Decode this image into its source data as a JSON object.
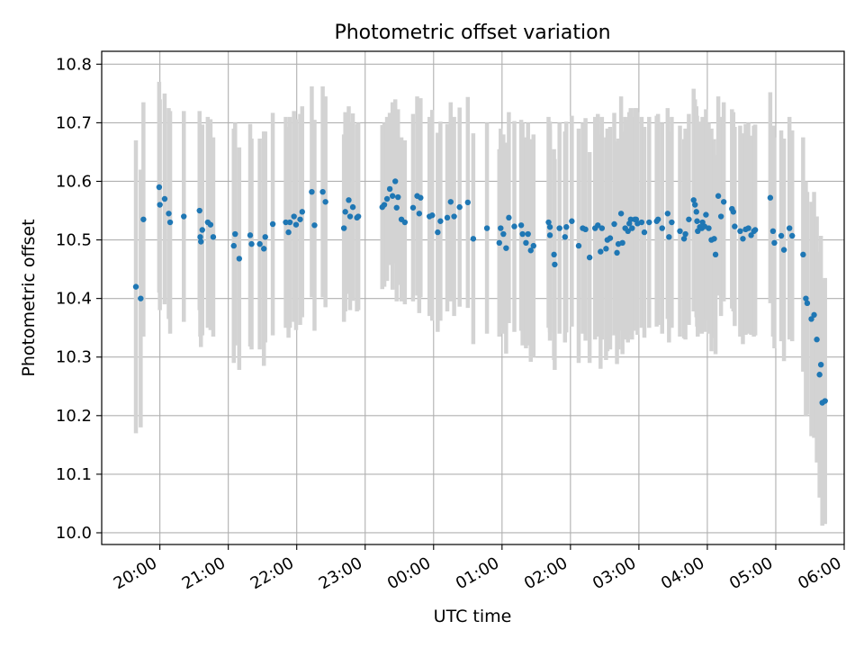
{
  "chart_data": {
    "type": "scatter",
    "title": "Photometric offset variation",
    "xlabel": "UTC time",
    "ylabel": "Photometric offset",
    "x_unit": "hours since 20:00 UTC",
    "xlim": [
      -0.85,
      10.0
    ],
    "ylim": [
      9.98,
      10.822
    ],
    "grid": true,
    "colors": {
      "point": "#1f77b4",
      "errorbar": "#d3d3d3",
      "grid": "#b0b0b0"
    },
    "x_ticks": [
      0,
      1,
      2,
      3,
      4,
      5,
      6,
      7,
      8,
      9,
      10
    ],
    "x_tick_labels": [
      "20:00",
      "21:00",
      "22:00",
      "23:00",
      "00:00",
      "01:00",
      "02:00",
      "03:00",
      "04:00",
      "05:00",
      "06:00"
    ],
    "y_ticks": [
      10.0,
      10.1,
      10.2,
      10.3,
      10.4,
      10.5,
      10.6,
      10.7,
      10.8
    ],
    "y_tick_labels": [
      "10.0",
      "10.1",
      "10.2",
      "10.3",
      "10.4",
      "10.5",
      "10.6",
      "10.7",
      "10.8"
    ],
    "series": [
      {
        "name": "Photometric offset",
        "errorbar_halfwidth": 0.18,
        "points": [
          [
            -0.35,
            10.42,
            0.25
          ],
          [
            -0.28,
            10.4,
            0.22
          ],
          [
            -0.24,
            10.535,
            0.2
          ],
          [
            -0.01,
            10.59,
            0.18
          ],
          [
            0.0,
            10.56,
            0.18
          ],
          [
            0.07,
            10.57,
            0.18
          ],
          [
            0.13,
            10.545,
            0.18
          ],
          [
            0.15,
            10.53,
            0.19
          ],
          [
            0.35,
            10.54,
            0.18
          ],
          [
            0.58,
            10.55,
            0.17
          ],
          [
            0.59,
            10.505,
            0.17
          ],
          [
            0.6,
            10.497,
            0.18
          ],
          [
            0.62,
            10.517,
            0.18
          ],
          [
            0.7,
            10.53,
            0.18
          ],
          [
            0.74,
            10.526,
            0.18
          ],
          [
            0.78,
            10.505,
            0.17
          ],
          [
            1.08,
            10.49,
            0.2
          ],
          [
            1.1,
            10.51,
            0.19
          ],
          [
            1.16,
            10.468,
            0.19
          ],
          [
            1.32,
            10.508,
            0.19
          ],
          [
            1.34,
            10.493,
            0.18
          ],
          [
            1.46,
            10.493,
            0.18
          ],
          [
            1.52,
            10.485,
            0.2
          ],
          [
            1.54,
            10.505,
            0.18
          ],
          [
            1.65,
            10.527,
            0.19
          ],
          [
            1.84,
            10.53,
            0.18
          ],
          [
            1.88,
            10.513,
            0.18
          ],
          [
            1.9,
            10.53,
            0.18
          ],
          [
            1.96,
            10.54,
            0.18
          ],
          [
            1.99,
            10.526,
            0.18
          ],
          [
            2.05,
            10.535,
            0.18
          ],
          [
            2.08,
            10.548,
            0.18
          ],
          [
            2.22,
            10.582,
            0.18
          ],
          [
            2.26,
            10.525,
            0.18
          ],
          [
            2.38,
            10.582,
            0.18
          ],
          [
            2.42,
            10.565,
            0.18
          ],
          [
            2.69,
            10.52,
            0.16
          ],
          [
            2.71,
            10.548,
            0.17
          ],
          [
            2.76,
            10.568,
            0.16
          ],
          [
            2.78,
            10.54,
            0.16
          ],
          [
            2.82,
            10.556,
            0.16
          ],
          [
            2.88,
            10.538,
            0.16
          ],
          [
            2.9,
            10.54,
            0.16
          ],
          [
            3.25,
            10.556,
            0.14
          ],
          [
            3.28,
            10.56,
            0.14
          ],
          [
            3.32,
            10.57,
            0.14
          ],
          [
            3.36,
            10.587,
            0.13
          ],
          [
            3.4,
            10.575,
            0.16
          ],
          [
            3.44,
            10.6,
            0.14
          ],
          [
            3.46,
            10.555,
            0.16
          ],
          [
            3.48,
            10.573,
            0.15
          ],
          [
            3.53,
            10.535,
            0.14
          ],
          [
            3.58,
            10.53,
            0.14
          ],
          [
            3.7,
            10.555,
            0.16
          ],
          [
            3.76,
            10.575,
            0.17
          ],
          [
            3.79,
            10.545,
            0.17
          ],
          [
            3.81,
            10.572,
            0.17
          ],
          [
            3.94,
            10.54,
            0.17
          ],
          [
            3.98,
            10.542,
            0.18
          ],
          [
            4.06,
            10.513,
            0.17
          ],
          [
            4.1,
            10.532,
            0.17
          ],
          [
            4.2,
            10.538,
            0.16
          ],
          [
            4.25,
            10.565,
            0.17
          ],
          [
            4.3,
            10.54,
            0.17
          ],
          [
            4.38,
            10.556,
            0.17
          ],
          [
            4.5,
            10.564,
            0.18
          ],
          [
            4.58,
            10.502,
            0.18
          ],
          [
            4.78,
            10.52,
            0.18
          ],
          [
            4.96,
            10.495,
            0.16
          ],
          [
            4.98,
            10.52,
            0.17
          ],
          [
            5.02,
            10.51,
            0.17
          ],
          [
            5.06,
            10.486,
            0.18
          ],
          [
            5.1,
            10.538,
            0.18
          ],
          [
            5.18,
            10.523,
            0.18
          ],
          [
            5.28,
            10.525,
            0.18
          ],
          [
            5.3,
            10.51,
            0.19
          ],
          [
            5.35,
            10.495,
            0.18
          ],
          [
            5.38,
            10.51,
            0.19
          ],
          [
            5.42,
            10.482,
            0.19
          ],
          [
            5.46,
            10.49,
            0.19
          ],
          [
            5.68,
            10.53,
            0.18
          ],
          [
            5.7,
            10.522,
            0.18
          ],
          [
            5.7,
            10.508,
            0.18
          ],
          [
            5.76,
            10.475,
            0.18
          ],
          [
            5.77,
            10.458,
            0.18
          ],
          [
            5.84,
            10.52,
            0.18
          ],
          [
            5.92,
            10.505,
            0.18
          ],
          [
            5.94,
            10.522,
            0.18
          ],
          [
            6.02,
            10.532,
            0.18
          ],
          [
            6.12,
            10.49,
            0.2
          ],
          [
            6.18,
            10.52,
            0.18
          ],
          [
            6.22,
            10.518,
            0.19
          ],
          [
            6.28,
            10.47,
            0.18
          ],
          [
            6.36,
            10.52,
            0.19
          ],
          [
            6.4,
            10.525,
            0.19
          ],
          [
            6.44,
            10.48,
            0.2
          ],
          [
            6.46,
            10.52,
            0.19
          ],
          [
            6.52,
            10.485,
            0.19
          ],
          [
            6.54,
            10.5,
            0.19
          ],
          [
            6.58,
            10.503,
            0.19
          ],
          [
            6.64,
            10.527,
            0.19
          ],
          [
            6.68,
            10.478,
            0.19
          ],
          [
            6.7,
            10.493,
            0.18
          ],
          [
            6.74,
            10.545,
            0.2
          ],
          [
            6.76,
            10.495,
            0.19
          ],
          [
            6.8,
            10.52,
            0.19
          ],
          [
            6.84,
            10.515,
            0.19
          ],
          [
            6.86,
            10.528,
            0.19
          ],
          [
            6.88,
            10.535,
            0.19
          ],
          [
            6.9,
            10.52,
            0.19
          ],
          [
            6.94,
            10.535,
            0.19
          ],
          [
            6.96,
            10.535,
            0.19
          ],
          [
            6.98,
            10.528,
            0.19
          ],
          [
            7.04,
            10.53,
            0.18
          ],
          [
            7.08,
            10.513,
            0.18
          ],
          [
            7.15,
            10.53,
            0.18
          ],
          [
            7.26,
            10.532,
            0.18
          ],
          [
            7.28,
            10.535,
            0.18
          ],
          [
            7.34,
            10.52,
            0.18
          ],
          [
            7.42,
            10.545,
            0.18
          ],
          [
            7.44,
            10.505,
            0.18
          ],
          [
            7.48,
            10.53,
            0.18
          ],
          [
            7.6,
            10.515,
            0.18
          ],
          [
            7.66,
            10.502,
            0.17
          ],
          [
            7.68,
            10.51,
            0.18
          ],
          [
            7.73,
            10.535,
            0.18
          ],
          [
            7.8,
            10.568,
            0.19
          ],
          [
            7.82,
            10.56,
            0.18
          ],
          [
            7.84,
            10.548,
            0.18
          ],
          [
            7.85,
            10.532,
            0.18
          ],
          [
            7.86,
            10.515,
            0.18
          ],
          [
            7.89,
            10.522,
            0.18
          ],
          [
            7.92,
            10.52,
            0.18
          ],
          [
            7.93,
            10.53,
            0.18
          ],
          [
            7.96,
            10.523,
            0.18
          ],
          [
            7.98,
            10.543,
            0.18
          ],
          [
            8.02,
            10.52,
            0.18
          ],
          [
            8.06,
            10.5,
            0.19
          ],
          [
            8.1,
            10.502,
            0.17
          ],
          [
            8.12,
            10.475,
            0.17
          ],
          [
            8.16,
            10.575,
            0.17
          ],
          [
            8.2,
            10.54,
            0.17
          ],
          [
            8.24,
            10.565,
            0.17
          ],
          [
            8.36,
            10.553,
            0.17
          ],
          [
            8.38,
            10.548,
            0.17
          ],
          [
            8.4,
            10.523,
            0.17
          ],
          [
            8.48,
            10.515,
            0.18
          ],
          [
            8.52,
            10.502,
            0.18
          ],
          [
            8.56,
            10.518,
            0.18
          ],
          [
            8.6,
            10.52,
            0.18
          ],
          [
            8.64,
            10.508,
            0.17
          ],
          [
            8.68,
            10.515,
            0.18
          ],
          [
            8.7,
            10.517,
            0.18
          ],
          [
            8.92,
            10.572,
            0.18
          ],
          [
            8.96,
            10.515,
            0.18
          ],
          [
            8.98,
            10.495,
            0.18
          ],
          [
            9.08,
            10.507,
            0.18
          ],
          [
            9.12,
            10.483,
            0.19
          ],
          [
            9.2,
            10.52,
            0.19
          ],
          [
            9.24,
            10.507,
            0.18
          ],
          [
            9.4,
            10.475,
            0.2
          ],
          [
            9.44,
            10.4,
            0.2
          ],
          [
            9.46,
            10.392,
            0.19
          ],
          [
            9.52,
            10.365,
            0.2
          ],
          [
            9.56,
            10.372,
            0.21
          ],
          [
            9.6,
            10.33,
            0.21
          ],
          [
            9.64,
            10.27,
            0.21
          ],
          [
            9.66,
            10.287,
            0.22
          ],
          [
            9.68,
            10.222,
            0.21
          ],
          [
            9.72,
            10.225,
            0.21
          ]
        ]
      }
    ]
  }
}
